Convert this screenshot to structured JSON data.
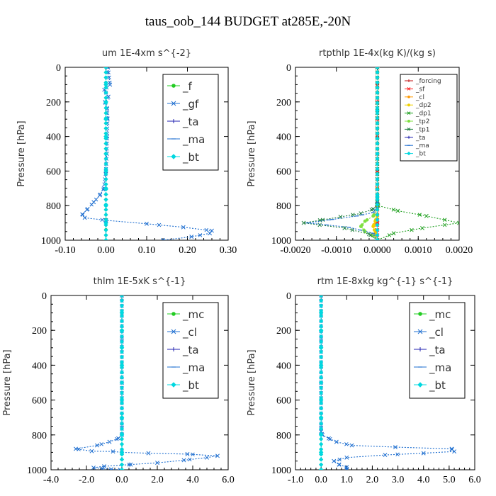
{
  "figure": {
    "title": "taus_oob_144  BUDGET at285E,-20N"
  },
  "chart_data": [
    {
      "type": "line",
      "title": "um   1E-4xm s^{-2}",
      "ylabel": "Pressure [hPa]",
      "xlabel": "",
      "xlim": [
        -0.1,
        0.3
      ],
      "ylim": [
        1000,
        0
      ],
      "xticks": [
        "-0.10",
        "0.00",
        "0.10",
        "0.20",
        "0.30"
      ],
      "xtick_values": [
        -0.1,
        0.0,
        0.1,
        0.2,
        0.3
      ],
      "yticks": [
        "0",
        "200",
        "400",
        "600",
        "800",
        "1000"
      ],
      "ytick_values": [
        0,
        200,
        400,
        600,
        800,
        1000
      ],
      "legend_position": "top-right",
      "legend_size": "large",
      "series": [
        {
          "name": "_f",
          "color": "#22cc22",
          "marker": "o",
          "x": [
            0.0,
            0.0,
            0.0,
            0.0,
            0.0,
            0.0,
            0.0,
            0.0,
            0.0,
            0.0,
            0.0,
            0.0
          ],
          "y": [
            0,
            100,
            200,
            300,
            400,
            500,
            600,
            700,
            800,
            880,
            940,
            1000
          ]
        },
        {
          "name": "_gf",
          "color": "#1f6fd0",
          "marker": "x",
          "x": [
            0.005,
            0.01,
            -0.004,
            0.006,
            -0.002,
            0.003,
            0.004,
            0.003,
            0.002,
            0.0,
            -0.005,
            -0.015,
            -0.03,
            -0.045,
            -0.058,
            -0.052,
            0.0,
            0.1,
            0.19,
            0.26,
            0.255,
            0.21,
            0.14
          ],
          "y": [
            0,
            100,
            130,
            170,
            200,
            240,
            300,
            400,
            500,
            600,
            700,
            740,
            780,
            820,
            850,
            870,
            885,
            905,
            925,
            945,
            960,
            980,
            1000
          ]
        },
        {
          "name": "_ta",
          "color": "#2020b0",
          "marker": "+",
          "x": [
            0.0,
            0.0,
            0.0,
            0.0,
            0.0,
            0.0,
            0.0,
            0.0,
            0.0,
            0.0,
            0.0
          ],
          "y": [
            0,
            100,
            200,
            300,
            400,
            500,
            600,
            700,
            800,
            900,
            1000
          ]
        },
        {
          "name": "_ma",
          "color": "#1f6fd0",
          "marker": "-",
          "x": [
            0.0,
            0.0,
            0.0,
            0.0,
            0.0,
            0.0,
            0.0,
            0.0,
            0.0,
            0.0,
            0.0
          ],
          "y": [
            0,
            100,
            200,
            300,
            400,
            500,
            600,
            700,
            800,
            900,
            1000
          ]
        },
        {
          "name": "_bt",
          "color": "#00d8e0",
          "marker": "d",
          "x": [
            0.0,
            0.0,
            0.0,
            0.0,
            0.0,
            0.0,
            0.0,
            0.0,
            0.0,
            0.0,
            0.0
          ],
          "y": [
            0,
            100,
            200,
            300,
            400,
            500,
            600,
            700,
            800,
            900,
            1000
          ]
        }
      ]
    },
    {
      "type": "line",
      "title": "rtpthlp   1E-4x(kg K)/(kg s)",
      "ylabel": "Pressure [hPa]",
      "xlabel": "",
      "xlim": [
        -0.002,
        0.002
      ],
      "ylim": [
        1000,
        0
      ],
      "xticks": [
        "-0.0020",
        "-0.0010",
        "0.0000",
        "0.0010",
        "0.0020"
      ],
      "xtick_values": [
        -0.002,
        -0.001,
        0.0,
        0.001,
        0.002
      ],
      "yticks": [
        "0",
        "200",
        "400",
        "600",
        "800",
        "1000"
      ],
      "ytick_values": [
        0,
        200,
        400,
        600,
        800,
        1000
      ],
      "legend_position": "top-right",
      "legend_size": "small",
      "series": [
        {
          "name": "_forcing",
          "color": "#c01010",
          "marker": "+",
          "x": [
            0.0,
            0.0,
            0.0,
            0.0,
            0.0,
            0.0,
            0.0,
            0.0,
            0.0,
            0.0,
            0.0
          ],
          "y": [
            0,
            100,
            200,
            300,
            400,
            500,
            600,
            700,
            800,
            900,
            1000
          ]
        },
        {
          "name": "_sf",
          "color": "#ff2020",
          "marker": "x",
          "x": [
            0.0,
            0.0,
            0.0,
            0.0,
            0.0,
            0.0,
            0.0,
            0.0,
            0.0,
            0.0,
            0.0
          ],
          "y": [
            0,
            100,
            200,
            300,
            400,
            500,
            600,
            700,
            800,
            900,
            1000
          ]
        },
        {
          "name": "_cl",
          "color": "#ff9900",
          "marker": "*",
          "x": [
            0.0,
            0.0,
            0.0,
            0.0,
            -3e-05,
            -8e-05,
            -3e-05,
            0.0
          ],
          "y": [
            0,
            700,
            800,
            850,
            880,
            910,
            950,
            1000
          ]
        },
        {
          "name": "_dp2",
          "color": "#f0d000",
          "marker": "o",
          "x": [
            0.0,
            0.0,
            0.0,
            -5e-05,
            -0.0001,
            -5e-05,
            0.0
          ],
          "y": [
            0,
            800,
            860,
            890,
            920,
            960,
            1000
          ]
        },
        {
          "name": "_dp1",
          "color": "#20a020",
          "marker": "x",
          "x": [
            0.0,
            0.0,
            2e-05,
            0.0005,
            0.0012,
            0.002,
            0.0011,
            0.0004,
            0.0
          ],
          "y": [
            0,
            780,
            800,
            830,
            860,
            900,
            930,
            960,
            1000
          ]
        },
        {
          "name": "_tp2",
          "color": "#80e040",
          "marker": "o",
          "x": [
            0.0,
            0.0,
            -0.0001,
            -0.0003,
            -0.0004,
            -0.0003,
            -0.0001,
            0.0
          ],
          "y": [
            0,
            820,
            860,
            890,
            920,
            950,
            975,
            1000
          ]
        },
        {
          "name": "_tp1",
          "color": "#208040",
          "marker": "x",
          "x": [
            0.0,
            0.0,
            -0.0001,
            -0.0004,
            -0.0009,
            -0.0014,
            -0.0018,
            -0.0008,
            -0.0002,
            0.0
          ],
          "y": [
            0,
            790,
            820,
            845,
            865,
            885,
            900,
            930,
            965,
            1000
          ]
        },
        {
          "name": "_ta",
          "color": "#2020b0",
          "marker": "+",
          "x": [
            0.0,
            0.0,
            0.0,
            0.0,
            0.0
          ],
          "y": [
            0,
            250,
            500,
            750,
            1000
          ]
        },
        {
          "name": "_ma",
          "color": "#1f6fd0",
          "marker": "-",
          "x": [
            0.0,
            0.0,
            0.0,
            -0.0001,
            -0.0005,
            -0.0011,
            -0.0017,
            -0.0007,
            -0.0001,
            0.0
          ],
          "y": [
            0,
            780,
            810,
            840,
            860,
            880,
            900,
            925,
            960,
            1000
          ]
        },
        {
          "name": "_bt",
          "color": "#00d8e0",
          "marker": "d",
          "x": [
            0.0,
            0.0,
            0.0,
            0.0,
            0.0
          ],
          "y": [
            0,
            250,
            500,
            750,
            1000
          ]
        }
      ]
    },
    {
      "type": "line",
      "title": "thlm   1E-5xK s^{-1}",
      "ylabel": "Pressure [hPa]",
      "xlabel": "",
      "xlim": [
        -4.0,
        6.0
      ],
      "ylim": [
        1000,
        0
      ],
      "xticks": [
        "-4.0",
        "-2.0",
        "0.0",
        "2.0",
        "4.0",
        "6.0"
      ],
      "xtick_values": [
        -4.0,
        -2.0,
        0.0,
        2.0,
        4.0,
        6.0
      ],
      "yticks": [
        "0",
        "200",
        "400",
        "600",
        "800",
        "1000"
      ],
      "ytick_values": [
        0,
        200,
        400,
        600,
        800,
        1000
      ],
      "legend_position": "top-right",
      "legend_size": "large",
      "series": [
        {
          "name": "_mc",
          "color": "#22cc22",
          "marker": "o",
          "x": [
            0.0,
            0.0,
            0.0,
            0.0,
            0.0,
            0.0,
            0.0,
            0.0,
            0.0,
            0.0,
            0.0
          ],
          "y": [
            0,
            100,
            200,
            300,
            400,
            500,
            600,
            700,
            800,
            900,
            1000
          ]
        },
        {
          "name": "_cl",
          "color": "#1f6fd0",
          "marker": "x",
          "x": [
            0.0,
            0.0,
            0.0,
            -0.2,
            -0.7,
            -1.4,
            -2.6,
            -1.7,
            -0.5,
            0.0,
            1.5,
            3.7,
            5.4,
            4.8,
            3.5,
            2.0,
            0.5,
            -1.0,
            -1.6,
            -1.1,
            -0.6,
            -0.1
          ],
          "y": [
            0,
            500,
            800,
            820,
            840,
            860,
            880,
            893,
            895,
            900,
            905,
            910,
            920,
            930,
            945,
            960,
            970,
            980,
            988,
            993,
            997,
            1000
          ]
        },
        {
          "name": "_ta",
          "color": "#2020b0",
          "marker": "+",
          "x": [
            0.0,
            0.0,
            0.0,
            0.0,
            0.0
          ],
          "y": [
            0,
            250,
            500,
            750,
            1000
          ]
        },
        {
          "name": "_ma",
          "color": "#1f6fd0",
          "marker": "-",
          "x": [
            0.0,
            0.0,
            0.0,
            0.0,
            0.0
          ],
          "y": [
            0,
            250,
            500,
            750,
            1000
          ]
        },
        {
          "name": "_bt",
          "color": "#00d8e0",
          "marker": "d",
          "x": [
            0.0,
            0.0,
            0.0,
            0.0,
            0.0,
            0.0,
            0.0,
            0.0,
            0.0,
            0.0,
            0.0
          ],
          "y": [
            0,
            100,
            200,
            300,
            400,
            500,
            600,
            700,
            800,
            900,
            1000
          ]
        }
      ]
    },
    {
      "type": "line",
      "title": "rtm   1E-8xkg kg^{-1} s^{-1}",
      "ylabel": "Pressure [hPa]",
      "xlabel": "",
      "xlim": [
        -1.0,
        6.0
      ],
      "ylim": [
        1000,
        0
      ],
      "xticks": [
        "-1.0",
        "0.0",
        "1.0",
        "2.0",
        "3.0",
        "4.0",
        "5.0",
        "6.0"
      ],
      "xtick_values": [
        -1.0,
        0.0,
        1.0,
        2.0,
        3.0,
        4.0,
        5.0,
        6.0
      ],
      "yticks": [
        "0",
        "200",
        "400",
        "600",
        "800",
        "1000"
      ],
      "ytick_values": [
        0,
        200,
        400,
        600,
        800,
        1000
      ],
      "legend_position": "top-right",
      "legend_size": "large",
      "series": [
        {
          "name": "_mc",
          "color": "#22cc22",
          "marker": "o",
          "x": [
            0.0,
            0.0,
            0.0,
            0.0,
            0.0,
            0.0,
            0.0,
            0.0,
            0.0,
            0.0,
            0.0
          ],
          "y": [
            0,
            100,
            200,
            300,
            400,
            500,
            600,
            700,
            800,
            900,
            1000
          ]
        },
        {
          "name": "_cl",
          "color": "#1f6fd0",
          "marker": "x",
          "x": [
            0.0,
            0.0,
            0.0,
            0.05,
            0.3,
            0.6,
            1.2,
            2.9,
            5.1,
            5.2,
            4.0,
            2.5,
            1.0,
            0.5,
            0.7,
            1.0,
            1.0,
            1.0
          ],
          "y": [
            0,
            500,
            780,
            800,
            820,
            840,
            860,
            870,
            880,
            895,
            905,
            915,
            930,
            950,
            970,
            985,
            995,
            1000
          ]
        },
        {
          "name": "_ta",
          "color": "#2020b0",
          "marker": "+",
          "x": [
            0.0,
            0.0,
            0.0,
            0.0,
            0.0
          ],
          "y": [
            0,
            250,
            500,
            750,
            1000
          ]
        },
        {
          "name": "_ma",
          "color": "#1f6fd0",
          "marker": "-",
          "x": [
            0.0,
            0.0,
            0.0,
            0.0,
            0.0
          ],
          "y": [
            0,
            250,
            500,
            750,
            1000
          ]
        },
        {
          "name": "_bt",
          "color": "#00d8e0",
          "marker": "d",
          "x": [
            0.0,
            0.0,
            0.0,
            0.0,
            0.0,
            0.0,
            0.0,
            0.0,
            0.0,
            0.0,
            0.0
          ],
          "y": [
            0,
            100,
            200,
            300,
            400,
            500,
            600,
            700,
            800,
            900,
            1000
          ]
        }
      ]
    }
  ]
}
